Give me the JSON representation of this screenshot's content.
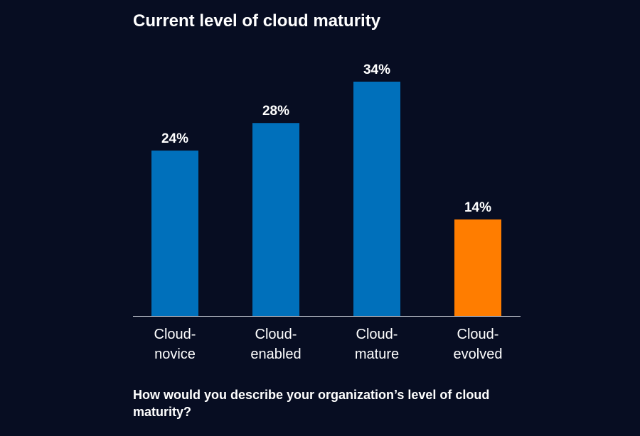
{
  "colors": {
    "background": "#070d22",
    "text": "#ffffff",
    "bar_default": "#0070bb",
    "bar_highlight": "#ff7d00",
    "axis": "#b9bec8"
  },
  "question": "How would you describe your organization’s level of cloud maturity?",
  "chart_data": {
    "type": "bar",
    "title": "Current level of cloud maturity",
    "categories": [
      "Cloud-novice",
      "Cloud-enabled",
      "Cloud-mature",
      "Cloud-evolved"
    ],
    "category_lines": [
      [
        "Cloud-",
        "novice"
      ],
      [
        "Cloud-",
        "enabled"
      ],
      [
        "Cloud-",
        "mature"
      ],
      [
        "Cloud-",
        "evolved"
      ]
    ],
    "values": [
      24,
      28,
      34,
      14
    ],
    "value_labels": [
      "24%",
      "28%",
      "34%",
      "14%"
    ],
    "highlight": [
      false,
      false,
      false,
      true
    ],
    "unit": "%",
    "ylim": [
      0,
      34
    ],
    "grid": false,
    "legend": "none",
    "xlabel": "",
    "ylabel": ""
  }
}
